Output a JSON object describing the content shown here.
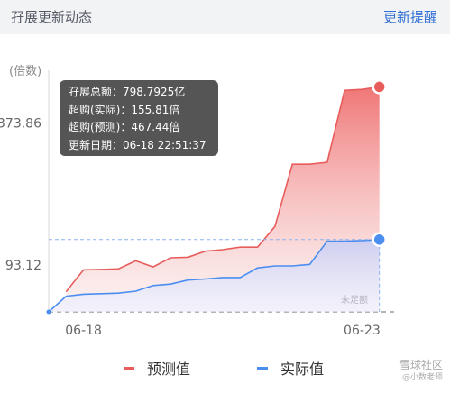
{
  "header": {
    "title": "孖展更新动态",
    "link_label": "更新提醒"
  },
  "tooltip": {
    "lines": [
      "孖展总额：798.7925亿",
      "超购(实际)：155.81倍",
      "超购(预测)：467.44倍",
      "更新日期：06-18 22:51:37"
    ]
  },
  "watermark": {
    "main": "雪球社区",
    "sub": "@小数老师"
  },
  "colors": {
    "predicted": "#e85c5c",
    "actual": "#4a8ef0",
    "threshold": "#888888"
  },
  "chart_data": {
    "type": "area",
    "y_unit_label": "(倍数)",
    "x_ticks": [
      {
        "x": 2,
        "label": "06-18"
      },
      {
        "x": 18,
        "label": "06-23"
      }
    ],
    "y_ticks": [
      {
        "y": 93.12,
        "label": "93.12"
      },
      {
        "y": 373.86,
        "label": "373.86"
      }
    ],
    "ylim": [
      0,
      460
    ],
    "xlim": [
      0,
      20
    ],
    "threshold": {
      "y": 0,
      "label": "未足额"
    },
    "grid": false,
    "legend_position": "bottom",
    "series": [
      {
        "name": "预测值",
        "x": [
          1,
          2,
          3,
          4,
          5,
          6,
          7,
          8,
          9,
          10,
          11,
          12,
          13,
          14,
          15,
          16,
          17,
          18,
          19
        ],
        "values": [
          40,
          83,
          84,
          85,
          101,
          89,
          107,
          108,
          120,
          123,
          128,
          128,
          169,
          292,
          292,
          296,
          438,
          440,
          445
        ]
      },
      {
        "name": "实际值",
        "x": [
          0,
          1,
          2,
          3,
          4,
          5,
          6,
          7,
          8,
          9,
          10,
          11,
          12,
          13,
          14,
          15,
          16,
          17,
          18,
          19
        ],
        "values": [
          0,
          31,
          35,
          36,
          37,
          41,
          52,
          55,
          63,
          65,
          68,
          68,
          87,
          91,
          91,
          94,
          140,
          140,
          141,
          143
        ]
      }
    ]
  }
}
